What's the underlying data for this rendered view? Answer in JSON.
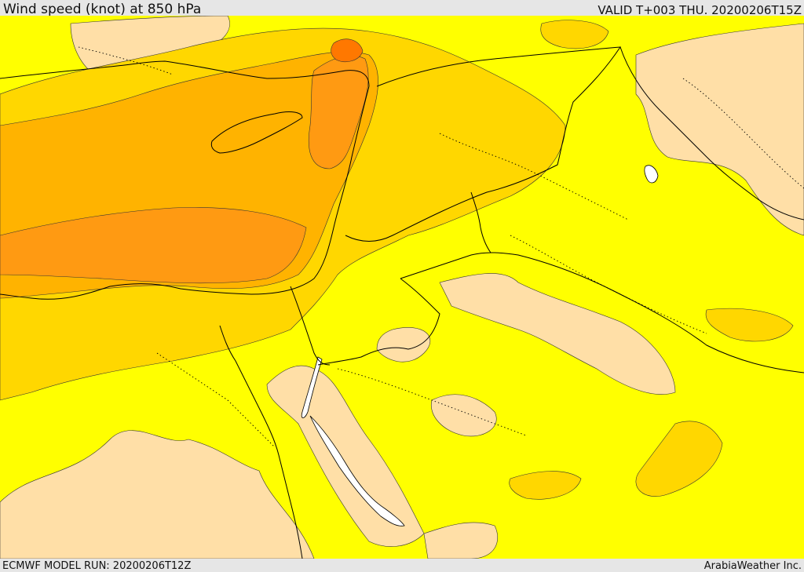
{
  "header": {
    "title": "Wind speed (knot) at 850 hPa",
    "valid": "VALID T+003 THU. 20200206T15Z"
  },
  "footer": {
    "model_run": "ECMWF MODEL RUN: 20200206T12Z",
    "credit": "ArabiaWeather Inc."
  },
  "map": {
    "colors": {
      "very_light": "#ffdfa7",
      "light": "#ffff00",
      "moderate": "#ffd700",
      "strong": "#ffb300",
      "very_strong": "#ff9a12",
      "extreme": "#ff7800",
      "water_channel": "#ffffff",
      "border": "#000000"
    }
  }
}
